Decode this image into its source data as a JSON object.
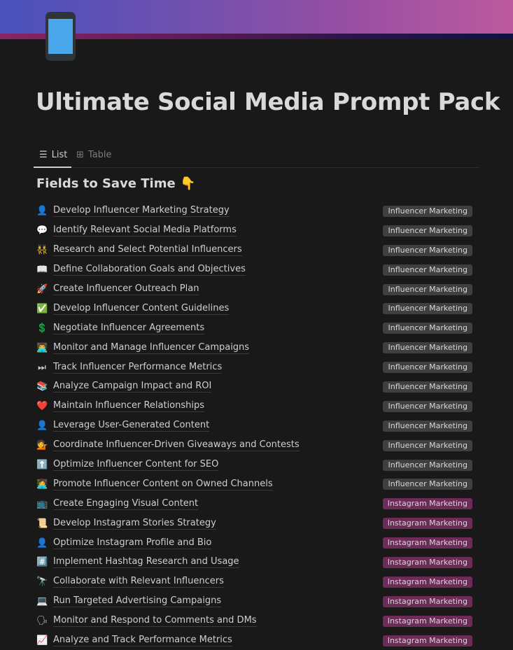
{
  "colors": {
    "influencer_tag": "#3f3f3f",
    "instagram_tag": "#6d2c57"
  },
  "page": {
    "icon": "mobile-phone-icon",
    "title": "Ultimate Social Media Prompt Pack"
  },
  "views": {
    "list": "List",
    "table": "Table"
  },
  "section": {
    "title": "Fields to Save Time",
    "emoji": "👇"
  },
  "rows": [
    {
      "emoji": "👤",
      "label": "Develop Influencer Marketing Strategy",
      "tag": "Influencer Marketing"
    },
    {
      "emoji": "💬",
      "label": "Identify Relevant Social Media Platforms",
      "tag": "Influencer Marketing"
    },
    {
      "emoji": "👯",
      "label": "Research and Select Potential Influencers",
      "tag": "Influencer Marketing"
    },
    {
      "emoji": "📖",
      "label": "Define Collaboration Goals and Objectives",
      "tag": "Influencer Marketing"
    },
    {
      "emoji": "🚀",
      "label": "Create Influencer Outreach Plan",
      "tag": "Influencer Marketing"
    },
    {
      "emoji": "✅",
      "label": "Develop Influencer Content Guidelines",
      "tag": "Influencer Marketing"
    },
    {
      "emoji": "💲",
      "label": "Negotiate Influencer Agreements",
      "tag": "Influencer Marketing"
    },
    {
      "emoji": "👨‍💻",
      "label": "Monitor and Manage Influencer Campaigns",
      "tag": "Influencer Marketing"
    },
    {
      "emoji": "⏭",
      "label": "Track Influencer Performance Metrics",
      "tag": "Influencer Marketing"
    },
    {
      "emoji": "📚",
      "label": "Analyze Campaign Impact and ROI",
      "tag": "Influencer Marketing"
    },
    {
      "emoji": "❤️",
      "label": "Maintain Influencer Relationships",
      "tag": "Influencer Marketing"
    },
    {
      "emoji": "👤",
      "label": "Leverage User-Generated Content",
      "tag": "Influencer Marketing"
    },
    {
      "emoji": "💁",
      "label": "Coordinate Influencer-Driven Giveaways and Contests",
      "tag": "Influencer Marketing"
    },
    {
      "emoji": "⬆️",
      "label": "Optimize Influencer Content for SEO",
      "tag": "Influencer Marketing"
    },
    {
      "emoji": "👩‍💻",
      "label": "Promote Influencer Content on Owned Channels",
      "tag": "Influencer Marketing"
    },
    {
      "emoji": "📺",
      "label": "Create Engaging Visual Content",
      "tag": "Instagram Marketing"
    },
    {
      "emoji": "📜",
      "label": "Develop Instagram Stories Strategy",
      "tag": "Instagram Marketing"
    },
    {
      "emoji": "👤",
      "label": "Optimize Instagram Profile and Bio",
      "tag": "Instagram Marketing"
    },
    {
      "emoji": "#️⃣",
      "label": "Implement Hashtag Research and Usage",
      "tag": "Instagram Marketing"
    },
    {
      "emoji": "🔭",
      "label": "Collaborate with Relevant Influencers",
      "tag": "Instagram Marketing"
    },
    {
      "emoji": "💻",
      "label": "Run Targeted Advertising Campaigns",
      "tag": "Instagram Marketing"
    },
    {
      "emoji": "🗣",
      "label": "Monitor and Respond to Comments and DMs",
      "tag": "Instagram Marketing"
    },
    {
      "emoji": "📈",
      "label": "Analyze and Track Performance Metrics",
      "tag": "Instagram Marketing"
    }
  ]
}
